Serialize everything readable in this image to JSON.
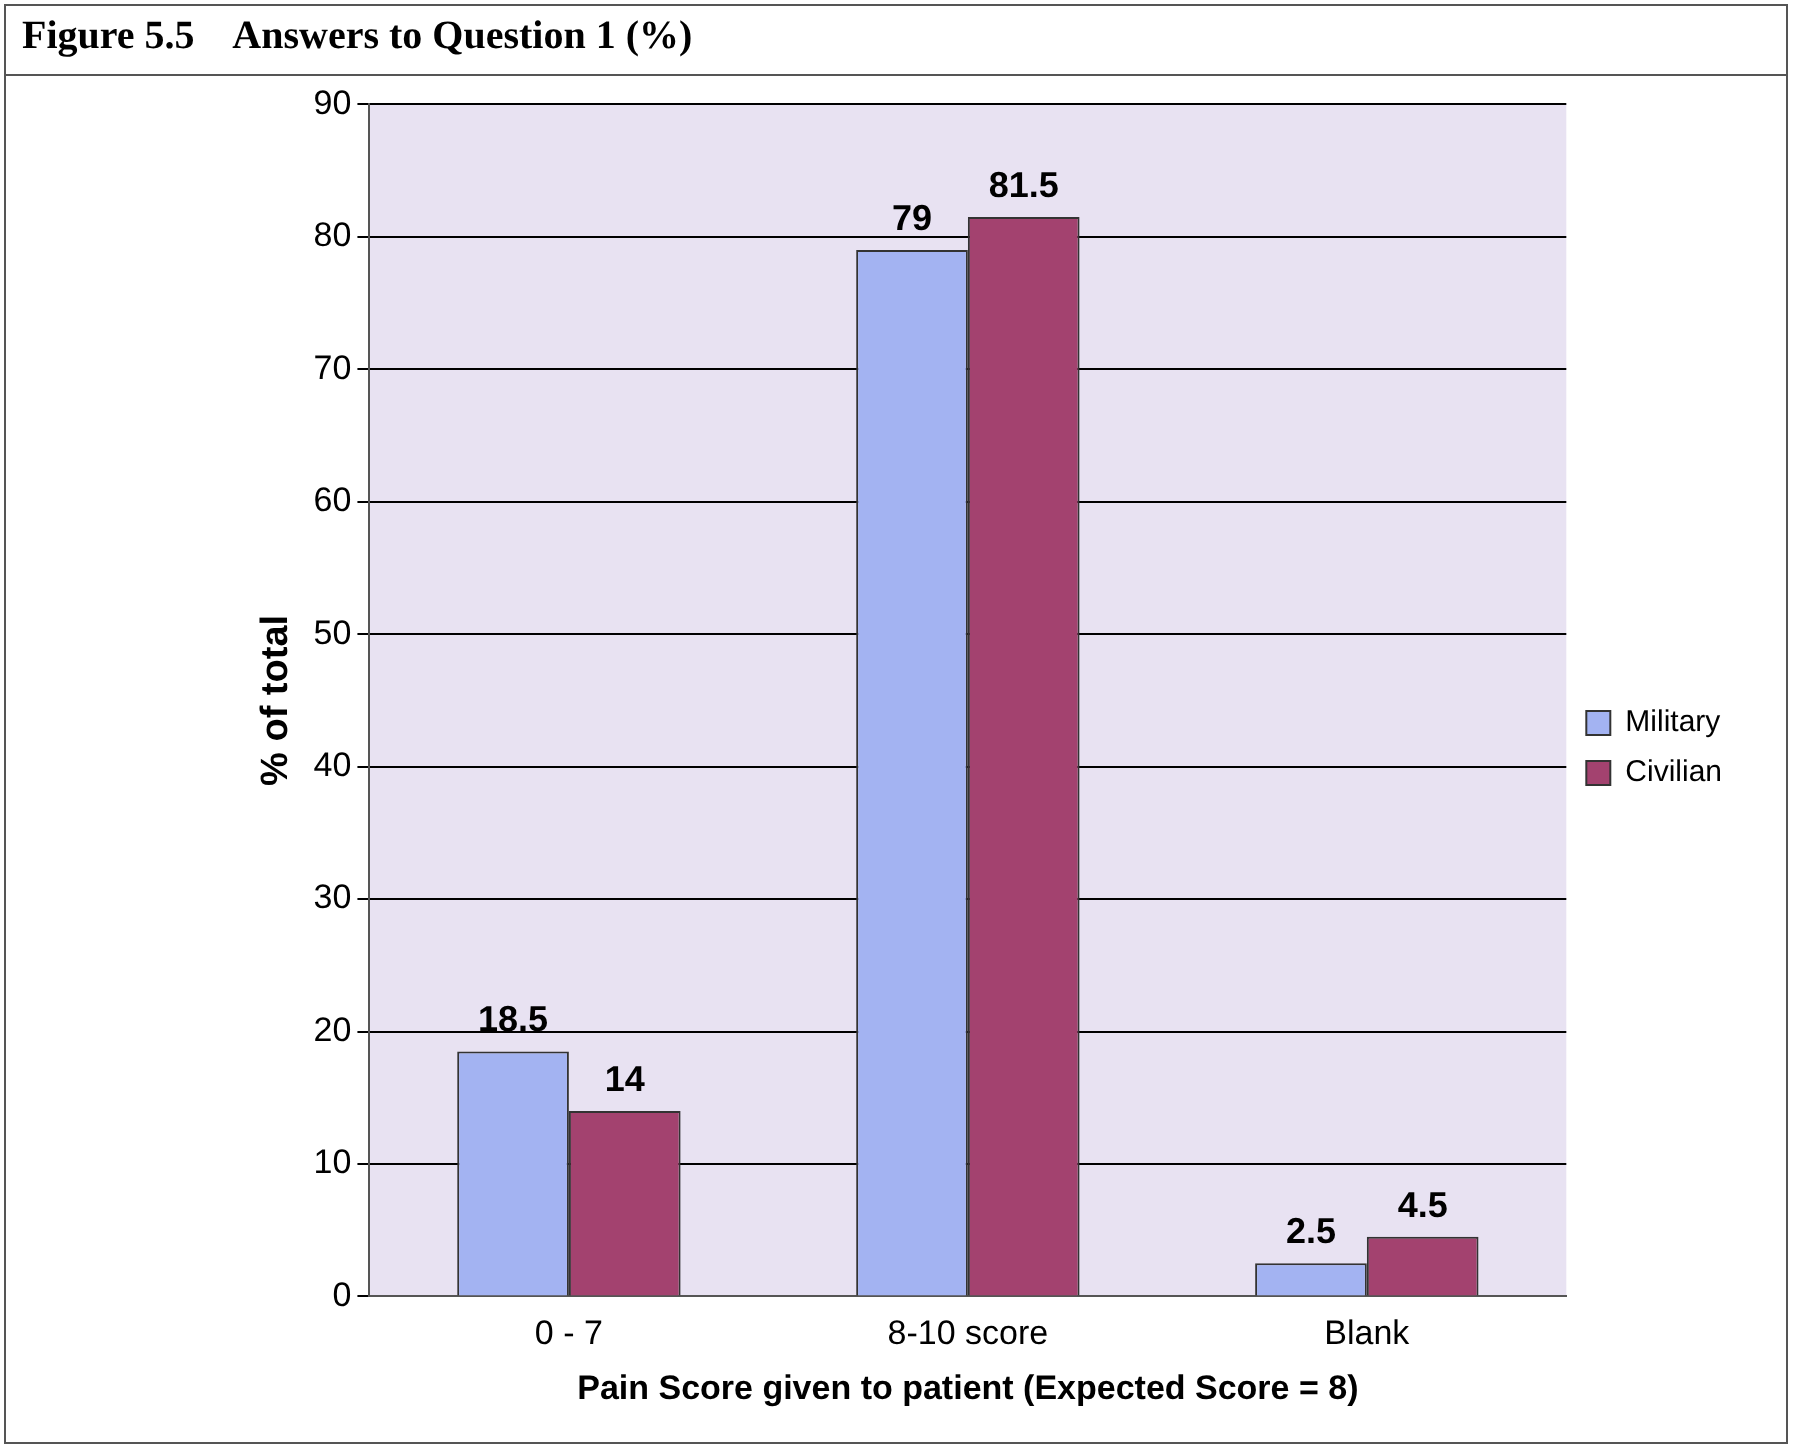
{
  "chart_data": {
    "type": "bar",
    "title": "Figure 5.5    Answers to Question 1 (%)",
    "xlabel": "Pain Score given to patient (Expected Score = 8)",
    "ylabel": "% of total",
    "categories": [
      "0 - 7",
      "8-10 score",
      "Blank"
    ],
    "series": [
      {
        "name": "Military",
        "color": "#a3b3f2",
        "values": [
          18.5,
          79,
          2.5
        ]
      },
      {
        "name": "Civilian",
        "color": "#a3426f",
        "values": [
          14,
          81.5,
          4.5
        ]
      }
    ],
    "ylim": [
      0,
      90
    ],
    "yticks": [
      0,
      10,
      20,
      30,
      40,
      50,
      60,
      70,
      80,
      90
    ],
    "grid": "y",
    "legend": "right",
    "data_labels": true
  }
}
